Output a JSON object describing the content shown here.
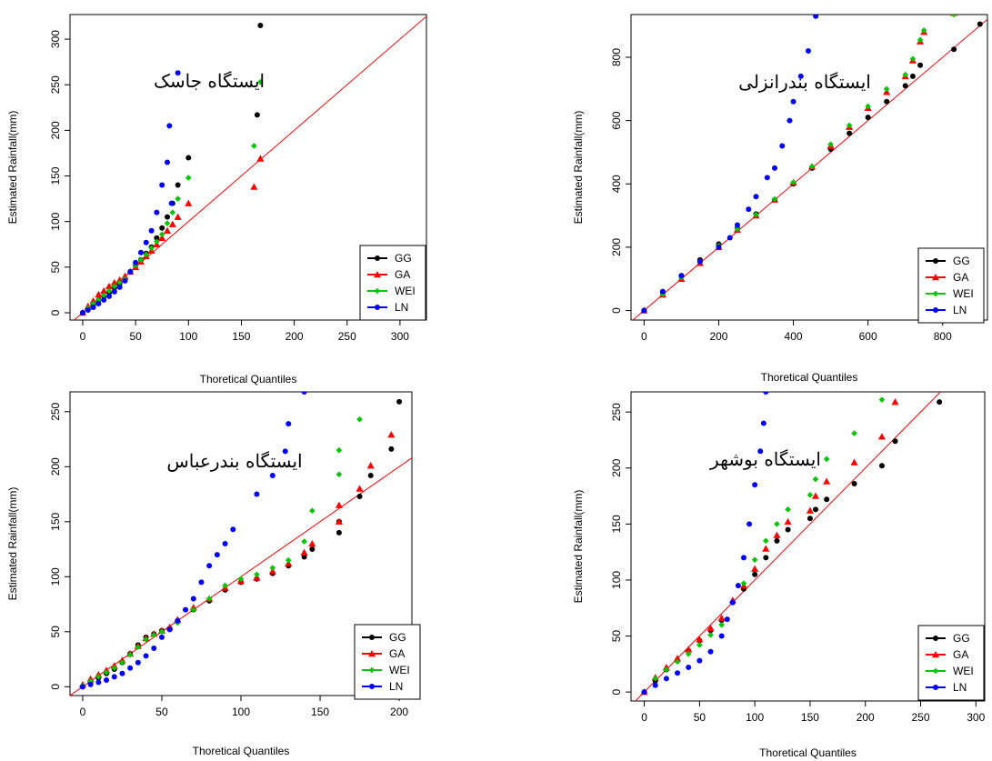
{
  "colors": {
    "GG": "#000000",
    "GA": "#ff0000",
    "WEI": "#00c800",
    "LN": "#0000ff",
    "line": "#ff0000"
  },
  "chart_data": [
    {
      "type": "scatter",
      "title": "ایستگاه جاسک",
      "xlabel": "Thoretical Quantiles",
      "ylabel": "Estimated Rainfall(mm)",
      "xlim": [
        -12,
        325
      ],
      "ylim": [
        -8,
        327
      ],
      "xticks": [
        0,
        50,
        100,
        150,
        200,
        250,
        300
      ],
      "yticks": [
        0,
        50,
        100,
        150,
        200,
        250,
        300
      ],
      "legend_position": "bottom-right",
      "series": [
        {
          "name": "GG",
          "x": [
            0,
            5,
            10,
            15,
            20,
            25,
            30,
            35,
            40,
            45,
            50,
            55,
            60,
            65,
            70,
            75,
            80,
            85,
            90,
            100,
            165,
            168
          ],
          "y": [
            0,
            4,
            9,
            14,
            18,
            22,
            27,
            32,
            36,
            45,
            52,
            58,
            65,
            72,
            82,
            93,
            105,
            120,
            140,
            170,
            217,
            315
          ]
        },
        {
          "name": "GA",
          "x": [
            0,
            5,
            10,
            15,
            20,
            25,
            30,
            35,
            40,
            45,
            50,
            55,
            60,
            65,
            70,
            75,
            80,
            85,
            90,
            100,
            162,
            168
          ],
          "y": [
            0,
            7,
            13,
            20,
            24,
            29,
            33,
            36,
            40,
            45,
            50,
            56,
            62,
            68,
            75,
            82,
            90,
            97,
            105,
            120,
            138,
            169
          ]
        },
        {
          "name": "WEI",
          "x": [
            0,
            5,
            10,
            15,
            20,
            25,
            30,
            35,
            40,
            45,
            50,
            55,
            60,
            65,
            70,
            75,
            80,
            85,
            90,
            100,
            162,
            168
          ],
          "y": [
            0,
            5,
            10,
            14,
            19,
            24,
            29,
            33,
            37,
            45,
            52,
            58,
            64,
            71,
            78,
            86,
            98,
            110,
            125,
            148,
            183,
            253
          ]
        },
        {
          "name": "LN",
          "x": [
            0,
            5,
            10,
            15,
            20,
            25,
            30,
            35,
            40,
            45,
            50,
            55,
            60,
            65,
            70,
            75,
            80,
            82,
            84,
            90
          ],
          "y": [
            0,
            3,
            6,
            10,
            14,
            18,
            23,
            28,
            35,
            45,
            55,
            66,
            77,
            90,
            110,
            140,
            165,
            205,
            120,
            263
          ]
        }
      ]
    },
    {
      "type": "scatter",
      "title": "ایستگاه بندرانزلی",
      "xlabel": "Thoretical Quantiles",
      "ylabel": "Estimated Rainfall(mm)",
      "xlim": [
        -35,
        920
      ],
      "ylim": [
        -30,
        935
      ],
      "xticks": [
        0,
        200,
        400,
        600,
        800
      ],
      "yticks": [
        0,
        200,
        400,
        600,
        800
      ],
      "legend_position": "bottom-right",
      "series": [
        {
          "name": "GG",
          "x": [
            0,
            50,
            100,
            150,
            200,
            250,
            300,
            350,
            400,
            450,
            500,
            550,
            600,
            650,
            700,
            720,
            740,
            830,
            900
          ],
          "y": [
            0,
            55,
            110,
            160,
            210,
            260,
            305,
            350,
            400,
            450,
            510,
            560,
            610,
            660,
            710,
            740,
            775,
            825,
            905
          ]
        },
        {
          "name": "GA",
          "x": [
            0,
            50,
            100,
            150,
            200,
            250,
            300,
            350,
            400,
            450,
            500,
            550,
            600,
            650,
            700,
            720,
            740,
            750,
            830
          ],
          "y": [
            0,
            50,
            100,
            150,
            200,
            255,
            300,
            350,
            405,
            455,
            520,
            580,
            640,
            690,
            740,
            790,
            850,
            880,
            940
          ]
        },
        {
          "name": "WEI",
          "x": [
            0,
            50,
            100,
            150,
            200,
            250,
            300,
            350,
            400,
            450,
            500,
            550,
            600,
            650,
            700,
            720,
            740,
            750,
            830
          ],
          "y": [
            0,
            52,
            105,
            155,
            205,
            258,
            303,
            352,
            405,
            455,
            525,
            585,
            645,
            700,
            745,
            795,
            855,
            885,
            935
          ]
        },
        {
          "name": "LN",
          "x": [
            0,
            50,
            100,
            150,
            200,
            230,
            250,
            280,
            300,
            330,
            350,
            370,
            390,
            400,
            420,
            440,
            460
          ],
          "y": [
            0,
            60,
            110,
            155,
            200,
            230,
            270,
            320,
            360,
            420,
            450,
            520,
            600,
            660,
            740,
            820,
            930
          ]
        }
      ]
    },
    {
      "type": "scatter",
      "title": "ایستگاه بندرعباس",
      "xlabel": "Thoretical Quantiles",
      "ylabel": "Estimated Rainfall(mm)",
      "xlim": [
        -8,
        208
      ],
      "ylim": [
        -8,
        268
      ],
      "xticks": [
        0,
        50,
        100,
        150,
        200
      ],
      "yticks": [
        0,
        50,
        100,
        150,
        200,
        250
      ],
      "legend_position": "bottom-right",
      "series": [
        {
          "name": "GG",
          "x": [
            0,
            5,
            10,
            15,
            20,
            25,
            30,
            35,
            40,
            45,
            50,
            55,
            60,
            70,
            80,
            90,
            100,
            110,
            120,
            130,
            140,
            145,
            162,
            162,
            175,
            182,
            195,
            200
          ],
          "y": [
            0,
            4,
            8,
            12,
            16,
            22,
            30,
            38,
            45,
            48,
            51,
            53,
            60,
            70,
            78,
            88,
            95,
            98,
            103,
            110,
            118,
            125,
            140,
            150,
            173,
            192,
            216,
            259
          ]
        },
        {
          "name": "GA",
          "x": [
            0,
            5,
            10,
            15,
            20,
            25,
            30,
            35,
            40,
            45,
            50,
            55,
            60,
            70,
            80,
            90,
            100,
            110,
            120,
            130,
            140,
            145,
            162,
            162,
            175,
            182,
            195
          ],
          "y": [
            2,
            7,
            11,
            15,
            19,
            24,
            30,
            37,
            44,
            48,
            51,
            54,
            61,
            72,
            80,
            90,
            96,
            99,
            105,
            112,
            122,
            130,
            150,
            165,
            180,
            201,
            229
          ]
        },
        {
          "name": "WEI",
          "x": [
            0,
            5,
            10,
            15,
            20,
            25,
            30,
            35,
            40,
            45,
            50,
            55,
            60,
            70,
            80,
            90,
            100,
            110,
            120,
            130,
            140,
            145,
            162,
            162,
            175
          ],
          "y": [
            1,
            5,
            9,
            13,
            17,
            22,
            29,
            36,
            43,
            47,
            50,
            52,
            58,
            70,
            80,
            92,
            98,
            102,
            108,
            115,
            132,
            160,
            193,
            215,
            243
          ]
        },
        {
          "name": "LN",
          "x": [
            0,
            5,
            10,
            15,
            20,
            25,
            30,
            35,
            40,
            45,
            50,
            55,
            60,
            65,
            70,
            75,
            80,
            85,
            90,
            95,
            110,
            120,
            128,
            130,
            140
          ],
          "y": [
            0,
            2,
            4,
            6,
            9,
            12,
            17,
            22,
            28,
            35,
            45,
            52,
            60,
            70,
            80,
            95,
            110,
            120,
            130,
            143,
            175,
            192,
            214,
            239,
            268
          ]
        }
      ]
    },
    {
      "type": "scatter",
      "title": "ایستگاه بوشهر",
      "xlabel": "Thoretical Quantiles",
      "ylabel": "Estimated Rainfall(mm)",
      "xlim": [
        -12,
        308
      ],
      "ylim": [
        -8,
        268
      ],
      "xticks": [
        0,
        50,
        100,
        150,
        200,
        250,
        300
      ],
      "yticks": [
        0,
        50,
        100,
        150,
        200,
        250
      ],
      "legend_position": "bottom-right",
      "series": [
        {
          "name": "GG",
          "x": [
            0,
            10,
            20,
            30,
            40,
            50,
            60,
            70,
            80,
            90,
            100,
            110,
            120,
            130,
            150,
            155,
            165,
            190,
            215,
            227,
            267
          ],
          "y": [
            0,
            10,
            20,
            28,
            37,
            46,
            55,
            64,
            80,
            92,
            105,
            120,
            135,
            145,
            155,
            163,
            172,
            186,
            202,
            224,
            259
          ]
        },
        {
          "name": "GA",
          "x": [
            0,
            10,
            20,
            30,
            40,
            50,
            60,
            70,
            80,
            90,
            100,
            110,
            120,
            130,
            150,
            155,
            165,
            190,
            215,
            227
          ],
          "y": [
            0,
            13,
            22,
            30,
            38,
            47,
            57,
            66,
            82,
            95,
            110,
            128,
            140,
            152,
            162,
            175,
            188,
            205,
            228,
            259
          ]
        },
        {
          "name": "WEI",
          "x": [
            0,
            10,
            20,
            30,
            40,
            50,
            60,
            70,
            80,
            90,
            100,
            110,
            120,
            130,
            150,
            155,
            165,
            190,
            215
          ],
          "y": [
            0,
            12,
            20,
            27,
            34,
            42,
            51,
            60,
            80,
            97,
            118,
            135,
            150,
            163,
            176,
            190,
            208,
            231,
            261
          ]
        },
        {
          "name": "LN",
          "x": [
            0,
            10,
            20,
            30,
            40,
            50,
            60,
            70,
            75,
            80,
            85,
            90,
            95,
            100,
            105,
            108,
            110
          ],
          "y": [
            0,
            6,
            12,
            17,
            22,
            28,
            36,
            50,
            65,
            80,
            95,
            120,
            150,
            185,
            215,
            240,
            268
          ]
        }
      ]
    }
  ]
}
